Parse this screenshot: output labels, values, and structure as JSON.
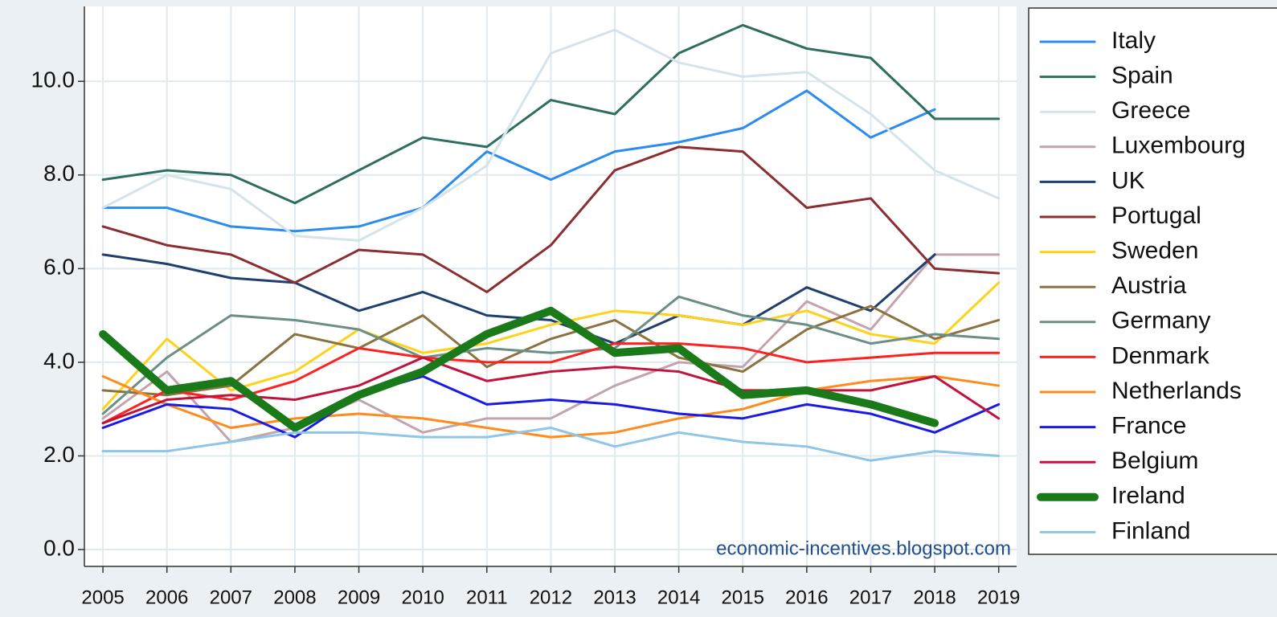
{
  "chart_data": {
    "type": "line",
    "annotation": "economic-incentives.blogspot.com",
    "x": [
      2005,
      2006,
      2007,
      2008,
      2009,
      2010,
      2011,
      2012,
      2013,
      2014,
      2015,
      2016,
      2017,
      2018,
      2019
    ],
    "xlim": [
      2004.71,
      2019.28
    ],
    "xticks": [
      2005,
      2006,
      2007,
      2008,
      2009,
      2010,
      2011,
      2012,
      2013,
      2014,
      2015,
      2016,
      2017,
      2018,
      2019
    ],
    "ylim": [
      -0.36,
      11.6
    ],
    "yticks": [
      {
        "value": 0,
        "label": "0.0"
      },
      {
        "value": 2,
        "label": "2.0"
      },
      {
        "value": 4,
        "label": "4.0"
      },
      {
        "value": 6,
        "label": "6.0"
      },
      {
        "value": 8,
        "label": "8.0"
      },
      {
        "value": 10,
        "label": "10.0"
      }
    ],
    "grid": true,
    "legend": "right",
    "series": [
      {
        "name": "Italy",
        "color": "#2a8cf0",
        "line_width": 3,
        "values": [
          7.3,
          7.3,
          6.9,
          6.8,
          6.9,
          7.3,
          8.5,
          7.9,
          8.5,
          8.7,
          9.0,
          9.8,
          8.8,
          9.4,
          null
        ]
      },
      {
        "name": "Spain",
        "color": "#2e6e5e",
        "line_width": 3,
        "values": [
          7.9,
          8.1,
          8.0,
          7.4,
          8.1,
          8.8,
          8.6,
          9.6,
          9.3,
          10.6,
          11.2,
          10.7,
          10.5,
          9.2,
          9.2
        ]
      },
      {
        "name": "Greece",
        "color": "#d5e3ea",
        "line_width": 3,
        "values": [
          7.3,
          8.0,
          7.7,
          6.7,
          6.6,
          7.3,
          8.2,
          10.6,
          11.1,
          10.4,
          10.1,
          10.2,
          9.3,
          8.1,
          7.5
        ]
      },
      {
        "name": "Luxembourg",
        "color": "#c4a4ac",
        "line_width": 3,
        "values": [
          2.8,
          3.8,
          2.3,
          2.6,
          3.2,
          2.5,
          2.8,
          2.8,
          3.5,
          4.0,
          3.9,
          5.3,
          4.7,
          6.3,
          6.3
        ]
      },
      {
        "name": "UK",
        "color": "#1f3f6e",
        "line_width": 3,
        "values": [
          6.3,
          6.1,
          5.8,
          5.7,
          5.1,
          5.5,
          5.0,
          4.9,
          4.4,
          5.0,
          4.8,
          5.6,
          5.1,
          6.3,
          null
        ]
      },
      {
        "name": "Portugal",
        "color": "#8b2e32",
        "line_width": 3,
        "values": [
          6.9,
          6.5,
          6.3,
          5.7,
          6.4,
          6.3,
          5.5,
          6.5,
          8.1,
          8.6,
          8.5,
          7.3,
          7.5,
          6.0,
          5.9
        ]
      },
      {
        "name": "Sweden",
        "color": "#ffd21a",
        "line_width": 3,
        "values": [
          3.0,
          4.5,
          3.4,
          3.8,
          4.7,
          4.2,
          4.4,
          4.8,
          5.1,
          5.0,
          4.8,
          5.1,
          4.6,
          4.4,
          5.7
        ]
      },
      {
        "name": "Austria",
        "color": "#8b7340",
        "line_width": 3,
        "values": [
          3.4,
          3.3,
          3.5,
          4.6,
          4.3,
          5.0,
          3.9,
          4.5,
          4.9,
          4.1,
          3.8,
          4.7,
          5.2,
          4.5,
          4.9
        ]
      },
      {
        "name": "Germany",
        "color": "#6b8f86",
        "line_width": 3,
        "values": [
          2.9,
          4.1,
          5.0,
          4.9,
          4.7,
          4.1,
          4.3,
          4.2,
          4.3,
          5.4,
          5.0,
          4.8,
          4.4,
          4.6,
          4.5
        ]
      },
      {
        "name": "Denmark",
        "color": "#ff2020",
        "line_width": 3,
        "values": [
          2.7,
          3.4,
          3.2,
          3.6,
          4.3,
          4.1,
          4.0,
          4.0,
          4.4,
          4.4,
          4.3,
          4.0,
          4.1,
          4.2,
          4.2
        ]
      },
      {
        "name": "Netherlands",
        "color": "#ff8c1a",
        "line_width": 3,
        "values": [
          3.7,
          3.1,
          2.6,
          2.8,
          2.9,
          2.8,
          2.6,
          2.4,
          2.5,
          2.8,
          3.0,
          3.4,
          3.6,
          3.7,
          3.5
        ]
      },
      {
        "name": "France",
        "color": "#1a1ae6",
        "line_width": 3,
        "values": [
          2.6,
          3.1,
          3.0,
          2.4,
          3.3,
          3.7,
          3.1,
          3.2,
          3.1,
          2.9,
          2.8,
          3.1,
          2.9,
          2.5,
          3.1
        ]
      },
      {
        "name": "Belgium",
        "color": "#c0143c",
        "line_width": 3,
        "values": [
          2.7,
          3.2,
          3.3,
          3.2,
          3.5,
          4.1,
          3.6,
          3.8,
          3.9,
          3.8,
          3.4,
          3.4,
          3.4,
          3.7,
          2.8
        ]
      },
      {
        "name": "Ireland",
        "color": "#1a7a1a",
        "line_width": 10,
        "values": [
          4.6,
          3.4,
          3.6,
          2.6,
          3.3,
          3.8,
          4.6,
          5.1,
          4.2,
          4.3,
          3.3,
          3.4,
          3.1,
          2.7,
          null
        ]
      },
      {
        "name": "Finland",
        "color": "#8ec5e8",
        "line_width": 3,
        "values": [
          2.1,
          2.1,
          2.3,
          2.5,
          2.5,
          2.4,
          2.4,
          2.6,
          2.2,
          2.5,
          2.3,
          2.2,
          1.9,
          2.1,
          2.0
        ]
      }
    ]
  }
}
